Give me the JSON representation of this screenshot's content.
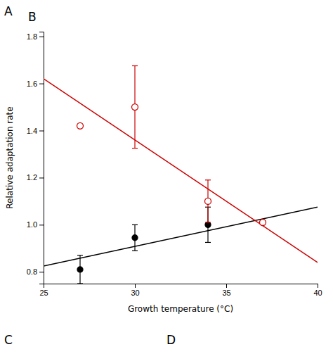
{
  "chart_data": {
    "type": "scatter",
    "title": "B",
    "x_label": "Growth temperature (°C)",
    "y_label": "Relative adaptation rate",
    "annotations": [
      "A",
      "C",
      "D"
    ],
    "xlim": [
      25,
      40
    ],
    "ylim": [
      0.75,
      1.82
    ],
    "xticks": [
      25,
      30,
      35,
      40
    ],
    "yticks": [
      {
        "value": 0.8,
        "label": "0.8"
      },
      {
        "value": 1.0,
        "label": "1.0"
      },
      {
        "value": 1.2,
        "label": "1.2"
      },
      {
        "value": 1.4,
        "label": "1.4"
      },
      {
        "value": 1.6,
        "label": "1.6"
      },
      {
        "value": 1.8,
        "label": "1.8"
      }
    ],
    "grid": false,
    "series": [
      {
        "type": "line",
        "color": "#000000",
        "x": [
          25,
          40
        ],
        "values": [
          0.825,
          1.075
        ]
      },
      {
        "type": "line",
        "color": "#cc0000",
        "x": [
          25,
          40
        ],
        "values": [
          1.62,
          0.84
        ]
      },
      {
        "type": "scatter",
        "color": "#000000",
        "marker": "circle",
        "x": [
          27,
          30,
          34
        ],
        "values": [
          0.81,
          0.945,
          1.0
        ],
        "errors": [
          0.06,
          0.055,
          0.075
        ]
      },
      {
        "type": "scatter",
        "color": "#cc0000",
        "marker": "open-circle",
        "x": [
          27,
          30,
          34,
          37
        ],
        "values": [
          1.42,
          1.5,
          1.1,
          1.01
        ],
        "errors": [
          0.0,
          0.175,
          0.09,
          0.0
        ]
      }
    ]
  }
}
